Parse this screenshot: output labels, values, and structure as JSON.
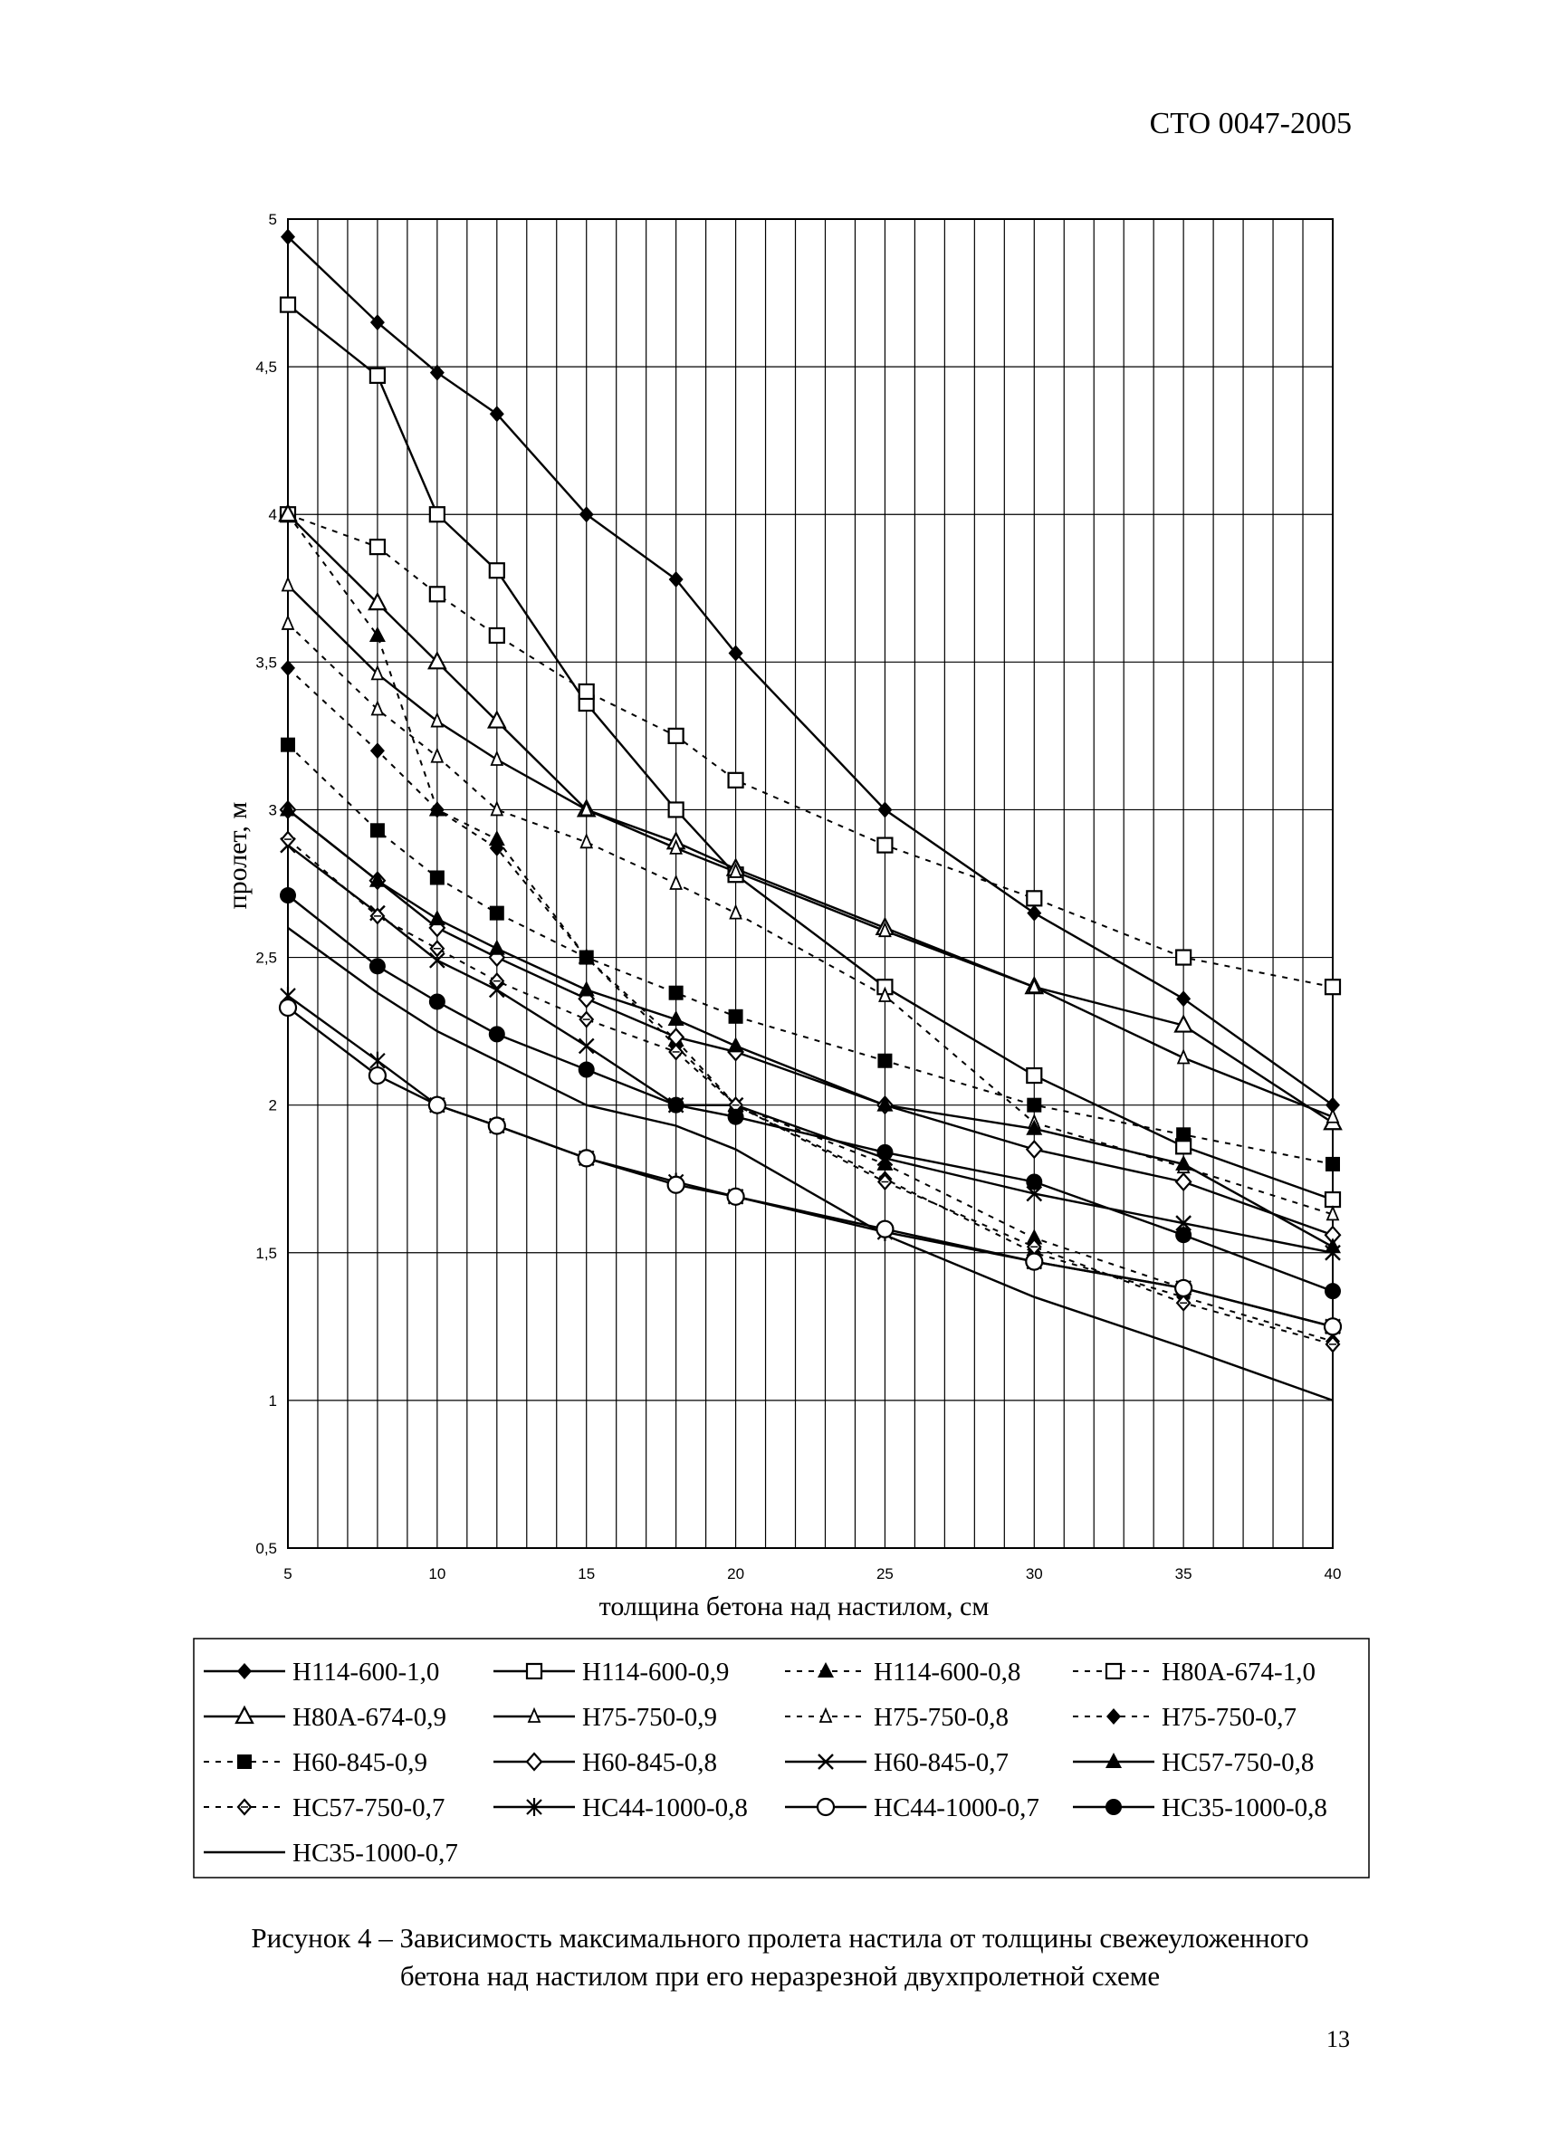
{
  "header": {
    "doc_code": "СТО 0047-2005"
  },
  "page_number": "13",
  "caption": {
    "line1": "Рисунок 4 – Зависимость максимального пролета настила от толщины свежеуложенного",
    "line2": "бетона над настилом при его неразрезной двухпролетной схеме"
  },
  "chart_data": {
    "type": "line",
    "xlabel": "толщина бетона над настилом, см",
    "ylabel": "пролет, м",
    "xlim": [
      5,
      40
    ],
    "ylim": [
      0.5,
      5
    ],
    "xticks": [
      "5",
      "10",
      "15",
      "20",
      "25",
      "30",
      "35",
      "40"
    ],
    "yticks": [
      "0,5",
      "1",
      "1,5",
      "2",
      "2,5",
      "3",
      "3,5",
      "4",
      "4,5",
      "5"
    ],
    "grid": true,
    "legend_position": "bottom",
    "series": [
      {
        "name": "Н114-600-1,0",
        "marker": "diamond-filled",
        "dash": false,
        "points": [
          [
            5,
            4.94
          ],
          [
            8,
            4.65
          ],
          [
            10,
            4.48
          ],
          [
            12,
            4.34
          ],
          [
            15,
            4.0
          ],
          [
            18,
            3.78
          ],
          [
            20,
            3.53
          ],
          [
            25,
            3.0
          ],
          [
            30,
            2.65
          ],
          [
            35,
            2.36
          ],
          [
            40,
            2.0
          ]
        ]
      },
      {
        "name": "Н114-600-0,9",
        "marker": "square-open",
        "dash": false,
        "points": [
          [
            5,
            4.71
          ],
          [
            8,
            4.47
          ],
          [
            10,
            4.0
          ],
          [
            12,
            3.81
          ],
          [
            15,
            3.36
          ],
          [
            18,
            3.0
          ],
          [
            20,
            2.78
          ],
          [
            25,
            2.4
          ],
          [
            30,
            2.1
          ],
          [
            35,
            1.86
          ],
          [
            40,
            1.68
          ]
        ]
      },
      {
        "name": "Н114-600-0,8",
        "marker": "triangle-filled",
        "dash": true,
        "points": [
          [
            5,
            4.0
          ],
          [
            8,
            3.59
          ],
          [
            10,
            3.0
          ],
          [
            12,
            2.9
          ],
          [
            15,
            2.5
          ],
          [
            18,
            2.22
          ],
          [
            20,
            2.0
          ],
          [
            25,
            1.8
          ],
          [
            30,
            1.55
          ],
          [
            35,
            1.38
          ],
          [
            40,
            1.25
          ]
        ]
      },
      {
        "name": "Н80А-674-1,0",
        "marker": "square-open",
        "dash": true,
        "points": [
          [
            5,
            4.0
          ],
          [
            8,
            3.89
          ],
          [
            10,
            3.73
          ],
          [
            12,
            3.59
          ],
          [
            15,
            3.4
          ],
          [
            18,
            3.25
          ],
          [
            20,
            3.1
          ],
          [
            25,
            2.88
          ],
          [
            30,
            2.7
          ],
          [
            35,
            2.5
          ],
          [
            40,
            2.4
          ]
        ]
      },
      {
        "name": "Н80А-674-0,9",
        "marker": "triangle-open",
        "dash": false,
        "points": [
          [
            5,
            4.0
          ],
          [
            8,
            3.7
          ],
          [
            10,
            3.5
          ],
          [
            12,
            3.3
          ],
          [
            15,
            3.0
          ],
          [
            18,
            2.89
          ],
          [
            20,
            2.8
          ],
          [
            25,
            2.6
          ],
          [
            30,
            2.4
          ],
          [
            35,
            2.27
          ],
          [
            40,
            1.94
          ]
        ]
      },
      {
        "name": "Н75-750-0,9",
        "marker": "triangle-small-open",
        "dash": false,
        "points": [
          [
            5,
            3.76
          ],
          [
            8,
            3.46
          ],
          [
            10,
            3.3
          ],
          [
            12,
            3.17
          ],
          [
            15,
            3.0
          ],
          [
            18,
            2.87
          ],
          [
            20,
            2.79
          ],
          [
            25,
            2.59
          ],
          [
            30,
            2.4
          ],
          [
            35,
            2.16
          ],
          [
            40,
            1.96
          ]
        ]
      },
      {
        "name": "Н75-750-0,8",
        "marker": "triangle-small-open",
        "dash": true,
        "points": [
          [
            5,
            3.63
          ],
          [
            8,
            3.34
          ],
          [
            10,
            3.18
          ],
          [
            12,
            3.0
          ],
          [
            15,
            2.89
          ],
          [
            18,
            2.75
          ],
          [
            20,
            2.65
          ],
          [
            25,
            2.37
          ],
          [
            30,
            1.94
          ],
          [
            35,
            1.79
          ],
          [
            40,
            1.63
          ]
        ]
      },
      {
        "name": "Н75-750-0,7",
        "marker": "diamond-filled",
        "dash": true,
        "points": [
          [
            5,
            3.48
          ],
          [
            8,
            3.2
          ],
          [
            10,
            3.0
          ],
          [
            12,
            2.87
          ],
          [
            15,
            2.5
          ],
          [
            18,
            2.2
          ],
          [
            20,
            2.0
          ],
          [
            25,
            1.75
          ],
          [
            30,
            1.5
          ],
          [
            35,
            1.35
          ],
          [
            40,
            1.2
          ]
        ]
      },
      {
        "name": "Н60-845-0,9",
        "marker": "square-filled",
        "dash": true,
        "points": [
          [
            5,
            3.22
          ],
          [
            8,
            2.93
          ],
          [
            10,
            2.77
          ],
          [
            12,
            2.65
          ],
          [
            15,
            2.5
          ],
          [
            18,
            2.38
          ],
          [
            20,
            2.3
          ],
          [
            25,
            2.15
          ],
          [
            30,
            2.0
          ],
          [
            35,
            1.9
          ],
          [
            40,
            1.8
          ]
        ]
      },
      {
        "name": "Н60-845-0,8",
        "marker": "diamond-open",
        "dash": false,
        "points": [
          [
            5,
            3.0
          ],
          [
            8,
            2.76
          ],
          [
            10,
            2.6
          ],
          [
            12,
            2.5
          ],
          [
            15,
            2.36
          ],
          [
            18,
            2.23
          ],
          [
            20,
            2.18
          ],
          [
            25,
            2.0
          ],
          [
            30,
            1.85
          ],
          [
            35,
            1.74
          ],
          [
            40,
            1.56
          ]
        ]
      },
      {
        "name": "Н60-845-0,7",
        "marker": "x",
        "dash": false,
        "points": [
          [
            5,
            2.88
          ],
          [
            8,
            2.65
          ],
          [
            10,
            2.49
          ],
          [
            12,
            2.39
          ],
          [
            15,
            2.2
          ],
          [
            18,
            2.0
          ],
          [
            20,
            2.0
          ],
          [
            25,
            1.82
          ],
          [
            30,
            1.7
          ],
          [
            35,
            1.6
          ],
          [
            40,
            1.5
          ]
        ]
      },
      {
        "name": "НС57-750-0,8",
        "marker": "triangle-filled",
        "dash": false,
        "points": [
          [
            5,
            3.0
          ],
          [
            8,
            2.76
          ],
          [
            10,
            2.63
          ],
          [
            12,
            2.53
          ],
          [
            15,
            2.39
          ],
          [
            18,
            2.29
          ],
          [
            20,
            2.2
          ],
          [
            25,
            2.0
          ],
          [
            30,
            1.92
          ],
          [
            35,
            1.8
          ],
          [
            40,
            1.52
          ]
        ]
      },
      {
        "name": "НС57-750-0,7",
        "marker": "diamond-open-small",
        "dash": true,
        "points": [
          [
            5,
            2.9
          ],
          [
            8,
            2.64
          ],
          [
            10,
            2.53
          ],
          [
            12,
            2.42
          ],
          [
            15,
            2.29
          ],
          [
            18,
            2.18
          ],
          [
            20,
            2.0
          ],
          [
            25,
            1.74
          ],
          [
            30,
            1.52
          ],
          [
            35,
            1.33
          ],
          [
            40,
            1.19
          ]
        ]
      },
      {
        "name": "НС44-1000-0,8",
        "marker": "asterisk",
        "dash": false,
        "points": [
          [
            5,
            2.37
          ],
          [
            8,
            2.15
          ],
          [
            10,
            2.0
          ],
          [
            12,
            1.93
          ],
          [
            15,
            1.82
          ],
          [
            18,
            1.74
          ],
          [
            20,
            1.69
          ],
          [
            25,
            1.57
          ],
          [
            30,
            1.47
          ],
          [
            35,
            1.38
          ],
          [
            40,
            1.25
          ]
        ]
      },
      {
        "name": "НС44-1000-0,7",
        "marker": "circle-open",
        "dash": false,
        "points": [
          [
            5,
            2.33
          ],
          [
            8,
            2.1
          ],
          [
            10,
            2.0
          ],
          [
            12,
            1.93
          ],
          [
            15,
            1.82
          ],
          [
            18,
            1.73
          ],
          [
            20,
            1.69
          ],
          [
            25,
            1.58
          ],
          [
            30,
            1.47
          ],
          [
            35,
            1.38
          ],
          [
            40,
            1.25
          ]
        ]
      },
      {
        "name": "НС35-1000-0,8",
        "marker": "circle-filled",
        "dash": false,
        "points": [
          [
            5,
            2.71
          ],
          [
            8,
            2.47
          ],
          [
            10,
            2.35
          ],
          [
            12,
            2.24
          ],
          [
            15,
            2.12
          ],
          [
            18,
            2.0
          ],
          [
            20,
            1.96
          ],
          [
            25,
            1.84
          ],
          [
            30,
            1.74
          ],
          [
            35,
            1.56
          ],
          [
            40,
            1.37
          ]
        ]
      },
      {
        "name": "НС35-1000-0,7",
        "marker": "none",
        "dash": false,
        "points": [
          [
            5,
            2.6
          ],
          [
            8,
            2.38
          ],
          [
            10,
            2.25
          ],
          [
            12,
            2.15
          ],
          [
            15,
            2.0
          ],
          [
            18,
            1.93
          ],
          [
            20,
            1.85
          ],
          [
            25,
            1.56
          ],
          [
            30,
            1.35
          ],
          [
            35,
            1.18
          ],
          [
            40,
            1.0
          ]
        ]
      }
    ]
  }
}
